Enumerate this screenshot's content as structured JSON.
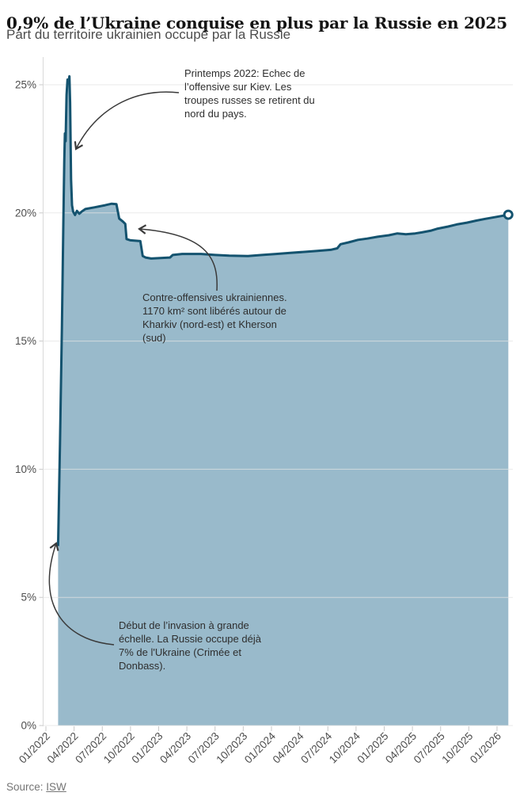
{
  "header": {
    "title": "0,9% de l’Ukraine conquise en plus par la Russie en 2025",
    "subtitle": "Part du territoire ukrainien occupé par la Russie"
  },
  "footer": {
    "source_prefix": "Source: ",
    "source_link": "ISW"
  },
  "chart_data": {
    "type": "area",
    "title": "0,9% de l’Ukraine conquise en plus par la Russie en 2025",
    "subtitle": "Part du territoire ukrainien occupé par la Russie",
    "x_unit": "months since 2022-01",
    "x_tick_months": [
      0,
      3,
      6,
      9,
      12,
      15,
      18,
      21,
      24,
      27,
      30,
      33,
      36,
      39,
      42,
      45,
      48
    ],
    "x_tick_labels": [
      "01/2022",
      "04/2022",
      "07/2022",
      "10/2022",
      "01/2023",
      "04/2023",
      "07/2023",
      "10/2023",
      "01/2024",
      "04/2024",
      "07/2024",
      "10/2024",
      "01/2025",
      "04/2025",
      "07/2025",
      "10/2025",
      "01/2026"
    ],
    "y_ticks": [
      0,
      5,
      10,
      15,
      20,
      25
    ],
    "y_tick_labels": [
      "0%",
      "5%",
      "10%",
      "15%",
      "20%",
      "25%"
    ],
    "ylim": [
      0,
      26
    ],
    "grid": true,
    "legend": "none",
    "colors": {
      "line": "#14536f",
      "fill": "#99bacb",
      "grid": "#e4e4e4",
      "axis": "#d9d9d9",
      "tick_text": "#4d4d4d",
      "arrow": "#3a3a3a"
    },
    "end_marker": {
      "month": 49.2,
      "value_pct": 19.93
    },
    "series": [
      {
        "name": "Part du territoire ukrainien occupé par la Russie (%)",
        "points": [
          [
            1.3,
            7.0
          ],
          [
            1.5,
            11.0
          ],
          [
            1.7,
            15.5
          ],
          [
            1.85,
            19.5
          ],
          [
            1.95,
            22.0
          ],
          [
            2.02,
            23.1
          ],
          [
            2.1,
            22.8
          ],
          [
            2.2,
            24.6
          ],
          [
            2.3,
            25.2
          ],
          [
            2.4,
            25.05
          ],
          [
            2.5,
            25.33
          ],
          [
            2.58,
            24.3
          ],
          [
            2.68,
            21.3
          ],
          [
            2.78,
            20.3
          ],
          [
            2.9,
            20.05
          ],
          [
            3.1,
            19.92
          ],
          [
            3.3,
            20.08
          ],
          [
            3.55,
            19.97
          ],
          [
            3.8,
            20.05
          ],
          [
            4.2,
            20.15
          ],
          [
            5.2,
            20.22
          ],
          [
            6.3,
            20.3
          ],
          [
            7.0,
            20.36
          ],
          [
            7.5,
            20.34
          ],
          [
            7.8,
            19.78
          ],
          [
            8.2,
            19.66
          ],
          [
            8.45,
            19.57
          ],
          [
            8.58,
            18.98
          ],
          [
            9.0,
            18.93
          ],
          [
            10.05,
            18.9
          ],
          [
            10.3,
            18.32
          ],
          [
            10.6,
            18.26
          ],
          [
            11.2,
            18.22
          ],
          [
            12.2,
            18.24
          ],
          [
            13.2,
            18.26
          ],
          [
            13.5,
            18.36
          ],
          [
            14.5,
            18.4
          ],
          [
            16.5,
            18.4
          ],
          [
            18.0,
            18.36
          ],
          [
            19.5,
            18.33
          ],
          [
            21.5,
            18.32
          ],
          [
            23.0,
            18.36
          ],
          [
            24.5,
            18.4
          ],
          [
            26.0,
            18.44
          ],
          [
            27.5,
            18.48
          ],
          [
            28.9,
            18.52
          ],
          [
            30.3,
            18.56
          ],
          [
            31.0,
            18.62
          ],
          [
            31.35,
            18.78
          ],
          [
            32.2,
            18.85
          ],
          [
            33.2,
            18.95
          ],
          [
            34.2,
            19.0
          ],
          [
            35.3,
            19.07
          ],
          [
            36.5,
            19.13
          ],
          [
            37.4,
            19.2
          ],
          [
            38.3,
            19.17
          ],
          [
            39.3,
            19.2
          ],
          [
            40.0,
            19.24
          ],
          [
            41.0,
            19.31
          ],
          [
            41.6,
            19.38
          ],
          [
            42.8,
            19.47
          ],
          [
            43.7,
            19.55
          ],
          [
            44.8,
            19.62
          ],
          [
            45.8,
            19.7
          ],
          [
            46.8,
            19.77
          ],
          [
            48.0,
            19.85
          ],
          [
            49.2,
            19.93
          ]
        ]
      }
    ],
    "annotations": [
      {
        "id": "printemps-2022",
        "text": "Printemps 2022: Echec de\nl’offensive sur Kiev. Les\ntroupes russes se retirent du\nnord du pays."
      },
      {
        "id": "contre-offensives",
        "text": "Contre-offensives ukrainiennes.\n1170 km² sont libérés autour de\nKharkiv (nord-est) et Kherson\n(sud)"
      },
      {
        "id": "debut-invasion",
        "text": "Début de l’invasion à grande\néchelle. La Russie occupe déjà\n7% de l'Ukraine (Crimée et\nDonbass)."
      }
    ]
  }
}
